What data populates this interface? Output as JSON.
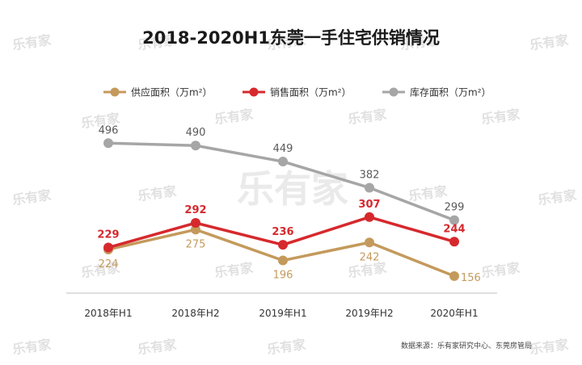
{
  "chart_data": {
    "type": "line",
    "title": "2018-2020H1东莞一手住宅供销情况",
    "categories": [
      "2018年H1",
      "2018年H2",
      "2019年H1",
      "2019年H2",
      "2020年H1"
    ],
    "series": [
      {
        "name": "供应面积（万m²）",
        "values": [
          224,
          275,
          196,
          242,
          156
        ],
        "color": "#c49a5c"
      },
      {
        "name": "销售面积（万m²）",
        "values": [
          229,
          292,
          236,
          307,
          244
        ],
        "color": "#d6292d"
      },
      {
        "name": "库存面积（万m²）",
        "values": [
          496,
          490,
          449,
          382,
          299
        ],
        "color": "#a6a6a6"
      }
    ],
    "legend_position": "top",
    "grid": false,
    "source": "数据来源：乐有家研究中心、东莞房管局",
    "watermark": "乐有家"
  }
}
